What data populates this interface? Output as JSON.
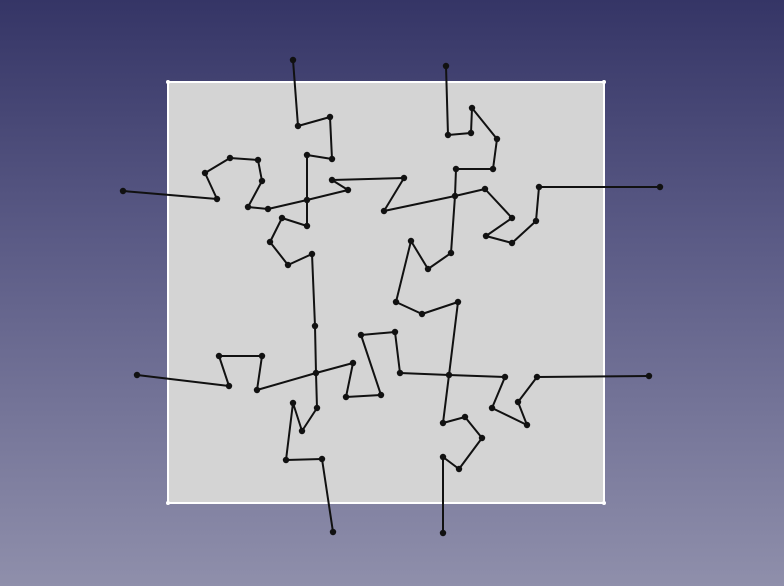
{
  "scene": {
    "background_top": "#353566",
    "background_bottom": "#8f8fab",
    "face_fill": "#d4d4d4",
    "face_edge": "#ffffff",
    "wire_color": "#111111"
  }
}
